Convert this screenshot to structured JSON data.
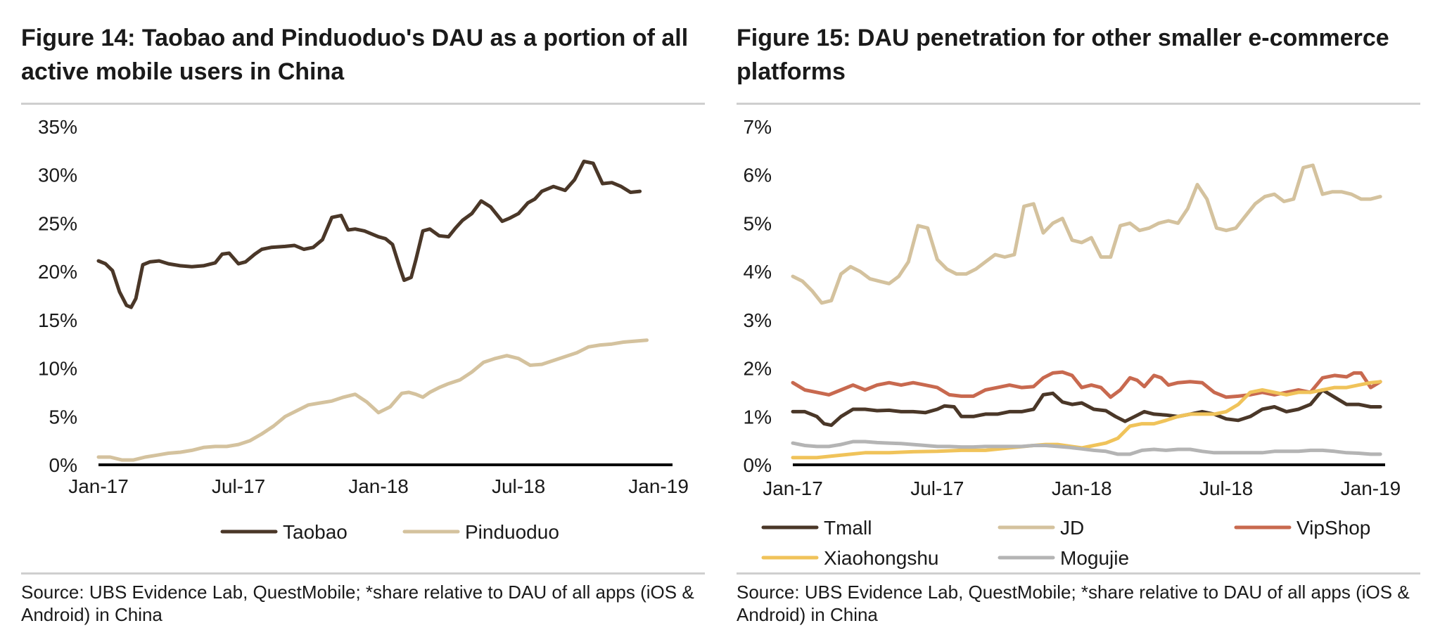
{
  "figures": [
    {
      "title": "Figure 14: Taobao and Pinduoduo's DAU as a portion of all active mobile users in China",
      "source": "Source:  UBS Evidence Lab, QuestMobile; *share relative to DAU of all apps (iOS & Android) in China"
    },
    {
      "title": "Figure 15: DAU penetration for other smaller e-commerce platforms",
      "source": "Source:  UBS Evidence Lab, QuestMobile; *share relative to DAU of all apps (iOS & Android) in China"
    }
  ],
  "chart_data": [
    {
      "type": "line",
      "title": "Figure 14: Taobao and Pinduoduo's DAU as a portion of all active mobile users in China",
      "x_range": [
        0,
        24.6
      ],
      "x_tick_labels": [
        "Jan-17",
        "Jul-17",
        "Jan-18",
        "Jul-18",
        "Jan-19"
      ],
      "x_tick_values": [
        0,
        6,
        12,
        18,
        24
      ],
      "ylim": [
        0,
        35
      ],
      "y_ticks": [
        0,
        5,
        10,
        15,
        20,
        25,
        30,
        35
      ],
      "y_tick_labels": [
        "0%",
        "5%",
        "10%",
        "15%",
        "20%",
        "25%",
        "30%",
        "35%"
      ],
      "legend_placement": "bottom",
      "series": [
        {
          "name": "Taobao",
          "color": "#4a3728",
          "x": [
            0,
            0.3,
            0.6,
            0.9,
            1.2,
            1.4,
            1.6,
            1.9,
            2.2,
            2.6,
            3,
            3.5,
            4,
            4.5,
            5,
            5.3,
            5.6,
            6,
            6.3,
            6.7,
            7,
            7.4,
            8,
            8.4,
            8.8,
            9.2,
            9.6,
            10,
            10.4,
            10.7,
            11,
            11.4,
            12,
            12.3,
            12.6,
            12.9,
            13.1,
            13.4,
            13.6,
            13.9,
            14.2,
            14.6,
            15,
            15.3,
            15.6,
            16,
            16.4,
            16.8,
            17.3,
            17.6,
            18,
            18.4,
            18.7,
            19,
            19.5,
            20,
            20.4,
            20.8,
            21.2,
            21.6,
            22,
            22.4,
            22.8,
            23.2,
            23.6,
            24,
            24.4
          ],
          "y": [
            21.1,
            20.8,
            20.1,
            17.9,
            16.5,
            16.3,
            17.2,
            20.7,
            21.0,
            21.1,
            20.8,
            20.6,
            20.5,
            20.6,
            20.9,
            21.8,
            21.9,
            20.8,
            21.0,
            21.8,
            22.3,
            22.5,
            22.6,
            22.7,
            22.3,
            22.5,
            23.3,
            25.6,
            25.8,
            24.3,
            24.4,
            24.2,
            23.6,
            23.4,
            22.8,
            20.5,
            19.1,
            19.4,
            21.2,
            24.2,
            24.4,
            23.7,
            23.6,
            24.5,
            25.3,
            26.0,
            27.3,
            26.7,
            25.2,
            25.5,
            26.0,
            27.1,
            27.5,
            28.3,
            28.8,
            28.4,
            29.5,
            31.4,
            31.2,
            29.1,
            29.2,
            28.8,
            28.2,
            28.3,
            null,
            null,
            null
          ]
        },
        {
          "name": "Pinduoduo",
          "color": "#d4c29e",
          "x": [
            0,
            0.5,
            1,
            1.5,
            2,
            2.5,
            3,
            3.5,
            4,
            4.5,
            5,
            5.5,
            6,
            6.5,
            7,
            7.5,
            8,
            8.5,
            9,
            9.5,
            10,
            10.5,
            11,
            11.5,
            12,
            12.5,
            13,
            13.3,
            13.6,
            13.9,
            14.2,
            14.6,
            15,
            15.5,
            16,
            16.5,
            17,
            17.5,
            18,
            18.5,
            19,
            19.5,
            20,
            20.5,
            21,
            21.5,
            22,
            22.5,
            23,
            23.5,
            24
          ],
          "y": [
            0.8,
            0.8,
            0.5,
            0.5,
            0.8,
            1.0,
            1.2,
            1.3,
            1.5,
            1.8,
            1.9,
            1.9,
            2.1,
            2.5,
            3.2,
            4.0,
            5.0,
            5.6,
            6.2,
            6.4,
            6.6,
            7.0,
            7.3,
            6.5,
            5.4,
            6.0,
            7.4,
            7.5,
            7.3,
            7.0,
            7.5,
            8.0,
            8.4,
            8.8,
            9.6,
            10.6,
            11.0,
            11.3,
            11.0,
            10.3,
            10.4,
            10.8,
            11.2,
            11.6,
            12.2,
            12.4,
            12.5,
            12.7,
            12.8,
            12.9,
            null
          ]
        }
      ]
    },
    {
      "type": "line",
      "title": "Figure 15: DAU penetration for other smaller e-commerce platforms",
      "x_range": [
        0,
        24.6
      ],
      "x_tick_labels": [
        "Jan-17",
        "Jul-17",
        "Jan-18",
        "Jul-18",
        "Jan-19"
      ],
      "x_tick_values": [
        0,
        6,
        12,
        18,
        24
      ],
      "ylim": [
        0,
        7
      ],
      "y_ticks": [
        0,
        1,
        2,
        3,
        4,
        5,
        6,
        7
      ],
      "y_tick_labels": [
        "0%",
        "1%",
        "2%",
        "3%",
        "4%",
        "5%",
        "6%",
        "7%"
      ],
      "legend_placement": "bottom",
      "series": [
        {
          "name": "Tmall",
          "color": "#4a3728",
          "x": [
            0,
            0.5,
            1,
            1.3,
            1.6,
            2,
            2.5,
            3,
            3.5,
            4,
            4.5,
            5,
            5.5,
            6,
            6.3,
            6.7,
            7,
            7.5,
            8,
            8.5,
            9,
            9.5,
            10,
            10.4,
            10.8,
            11.2,
            11.6,
            12,
            12.5,
            13,
            13.4,
            13.8,
            14.2,
            14.6,
            15,
            15.5,
            16,
            16.5,
            17,
            17.5,
            18,
            18.5,
            19,
            19.5,
            20,
            20.5,
            21,
            21.5,
            22,
            22.5,
            23,
            23.5,
            24,
            24.4
          ],
          "y": [
            1.1,
            1.1,
            1.0,
            0.85,
            0.82,
            1.0,
            1.15,
            1.15,
            1.12,
            1.13,
            1.1,
            1.1,
            1.08,
            1.15,
            1.22,
            1.2,
            1.0,
            1.0,
            1.05,
            1.05,
            1.1,
            1.1,
            1.15,
            1.45,
            1.48,
            1.3,
            1.25,
            1.28,
            1.15,
            1.12,
            1.0,
            0.9,
            1.0,
            1.1,
            1.05,
            1.03,
            1.0,
            1.05,
            1.1,
            1.05,
            0.95,
            0.92,
            1.0,
            1.15,
            1.2,
            1.1,
            1.15,
            1.25,
            1.55,
            1.4,
            1.25,
            1.25,
            1.2,
            1.2
          ]
        },
        {
          "name": "JD",
          "color": "#d4c29e",
          "x": [
            0,
            0.4,
            0.8,
            1.2,
            1.6,
            2,
            2.4,
            2.8,
            3.2,
            3.6,
            4,
            4.4,
            4.8,
            5.2,
            5.6,
            6,
            6.4,
            6.8,
            7.2,
            7.6,
            8,
            8.4,
            8.8,
            9.2,
            9.6,
            10,
            10.4,
            10.8,
            11.2,
            11.6,
            12,
            12.4,
            12.8,
            13.2,
            13.6,
            14,
            14.4,
            14.8,
            15.2,
            15.6,
            16,
            16.4,
            16.8,
            17.2,
            17.6,
            18,
            18.4,
            18.8,
            19.2,
            19.6,
            20,
            20.4,
            20.8,
            21.2,
            21.6,
            22,
            22.4,
            22.8,
            23.2,
            23.6,
            24,
            24.4
          ],
          "y": [
            3.9,
            3.8,
            3.6,
            3.35,
            3.4,
            3.95,
            4.1,
            4.0,
            3.85,
            3.8,
            3.75,
            3.9,
            4.2,
            4.95,
            4.9,
            4.25,
            4.05,
            3.95,
            3.95,
            4.05,
            4.2,
            4.35,
            4.3,
            4.35,
            5.35,
            5.4,
            4.8,
            5.0,
            5.1,
            4.65,
            4.6,
            4.7,
            4.3,
            4.3,
            4.95,
            5.0,
            4.85,
            4.9,
            5.0,
            5.05,
            5.0,
            5.3,
            5.8,
            5.5,
            4.9,
            4.85,
            4.9,
            5.15,
            5.4,
            5.55,
            5.6,
            5.45,
            5.5,
            6.15,
            6.2,
            5.6,
            5.65,
            5.65,
            5.6,
            5.5,
            5.5,
            5.55
          ]
        },
        {
          "name": "VipShop",
          "color": "#c8694f",
          "x": [
            0,
            0.5,
            1,
            1.5,
            2,
            2.5,
            3,
            3.5,
            4,
            4.5,
            5,
            5.5,
            6,
            6.5,
            7,
            7.5,
            8,
            8.5,
            9,
            9.5,
            10,
            10.4,
            10.8,
            11.2,
            11.6,
            12,
            12.4,
            12.8,
            13.2,
            13.6,
            14,
            14.3,
            14.6,
            15,
            15.3,
            15.6,
            16,
            16.5,
            17,
            17.5,
            18,
            18.5,
            19,
            19.5,
            20,
            20.5,
            21,
            21.5,
            22,
            22.5,
            23,
            23.3,
            23.6,
            24,
            24.4
          ],
          "y": [
            1.7,
            1.55,
            1.5,
            1.45,
            1.55,
            1.65,
            1.55,
            1.65,
            1.7,
            1.65,
            1.7,
            1.65,
            1.6,
            1.45,
            1.42,
            1.42,
            1.55,
            1.6,
            1.65,
            1.6,
            1.62,
            1.8,
            1.9,
            1.92,
            1.85,
            1.6,
            1.65,
            1.6,
            1.4,
            1.55,
            1.8,
            1.75,
            1.62,
            1.85,
            1.8,
            1.65,
            1.7,
            1.72,
            1.7,
            1.5,
            1.4,
            1.42,
            1.45,
            1.5,
            1.45,
            1.5,
            1.55,
            1.5,
            1.8,
            1.85,
            1.82,
            1.9,
            1.9,
            1.6,
            1.72
          ]
        },
        {
          "name": "Xiaohongshu",
          "color": "#f0c35a",
          "x": [
            0,
            1,
            2,
            3,
            4,
            5,
            6,
            7,
            8,
            9,
            10,
            10.5,
            11,
            12,
            13,
            13.5,
            14,
            14.5,
            15,
            15.5,
            16,
            16.5,
            17,
            17.5,
            18,
            18.5,
            19,
            19.5,
            20,
            20.5,
            21,
            21.5,
            22,
            22.5,
            23,
            23.5,
            24,
            24.4
          ],
          "y": [
            0.15,
            0.15,
            0.2,
            0.25,
            0.25,
            0.27,
            0.28,
            0.3,
            0.3,
            0.35,
            0.4,
            0.42,
            0.42,
            0.35,
            0.45,
            0.55,
            0.8,
            0.85,
            0.85,
            0.92,
            1.0,
            1.05,
            1.05,
            1.05,
            1.1,
            1.25,
            1.5,
            1.55,
            1.5,
            1.45,
            1.5,
            1.5,
            1.55,
            1.6,
            1.6,
            1.65,
            1.7,
            1.72
          ]
        },
        {
          "name": "Mogujie",
          "color": "#b4b4b4",
          "x": [
            0,
            0.5,
            1,
            1.5,
            2,
            2.5,
            3,
            3.5,
            4,
            4.5,
            5,
            5.5,
            6,
            6.5,
            7,
            7.5,
            8,
            8.5,
            9,
            9.5,
            10,
            10.5,
            11,
            11.5,
            12,
            12.5,
            13,
            13.5,
            14,
            14.5,
            15,
            15.5,
            16,
            16.5,
            17,
            17.5,
            18,
            18.5,
            19,
            19.5,
            20,
            20.5,
            21,
            21.5,
            22,
            22.5,
            23,
            23.5,
            24,
            24.4
          ],
          "y": [
            0.45,
            0.4,
            0.38,
            0.38,
            0.42,
            0.48,
            0.48,
            0.46,
            0.45,
            0.44,
            0.42,
            0.4,
            0.38,
            0.38,
            0.37,
            0.37,
            0.38,
            0.38,
            0.38,
            0.38,
            0.4,
            0.4,
            0.38,
            0.36,
            0.33,
            0.3,
            0.28,
            0.22,
            0.22,
            0.3,
            0.32,
            0.3,
            0.32,
            0.32,
            0.28,
            0.25,
            0.25,
            0.25,
            0.25,
            0.25,
            0.28,
            0.28,
            0.28,
            0.3,
            0.3,
            0.28,
            0.25,
            0.24,
            0.22,
            0.22
          ]
        }
      ]
    }
  ]
}
